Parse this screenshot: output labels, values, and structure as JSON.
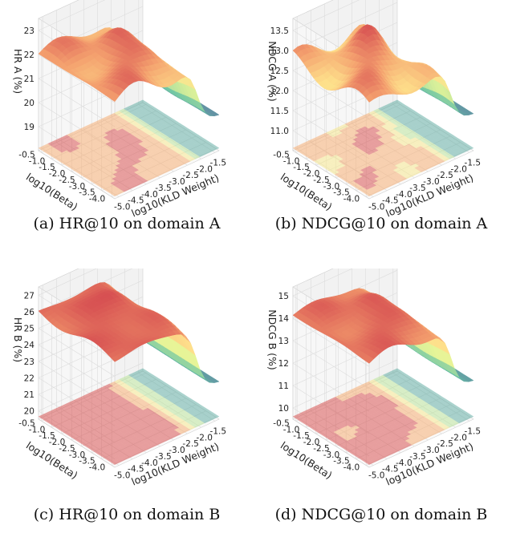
{
  "chart_data": [
    {
      "type": "surface3d",
      "caption": "(a) HR@10 on domain A",
      "zlabel": "HR A (%)",
      "xlabel": "log10(KLD Weight)",
      "ylabel": "log10(Beta)",
      "x_ticks": [
        "-5.0",
        "-4.5",
        "-4.0",
        "-3.5",
        "-3.0",
        "-2.5",
        "-2.0",
        "-1.5"
      ],
      "y_ticks": [
        "-4.0",
        "-3.5",
        "-3.0",
        "-2.5",
        "-2.0",
        "-1.5",
        "-1.0",
        "-0.5"
      ],
      "z_ticks": [
        "19",
        "20",
        "21",
        "22",
        "23"
      ],
      "zlim": [
        18,
        23.5
      ],
      "surface": {
        "base": 21.8,
        "peak": 23.2,
        "drop_to": 18.6
      }
    },
    {
      "type": "surface3d",
      "caption": "(b) NDCG@10 on domain A",
      "zlabel": "NDCG A (%)",
      "xlabel": "log10(KLD Weight)",
      "ylabel": "log10(Beta)",
      "x_ticks": [
        "-5.0",
        "-4.5",
        "-4.0",
        "-3.5",
        "-3.0",
        "-2.5",
        "-2.0",
        "-1.5"
      ],
      "y_ticks": [
        "-4.0",
        "-3.5",
        "-3.0",
        "-2.5",
        "-2.0",
        "-1.5",
        "-1.0",
        "-0.5"
      ],
      "z_ticks": [
        "11.0",
        "11.5",
        "12.0",
        "12.5",
        "13.0",
        "13.5"
      ],
      "zlim": [
        10.5,
        13.8
      ],
      "surface": {
        "base": 12.6,
        "peak": 13.6,
        "drop_to": 10.9
      }
    },
    {
      "type": "surface3d",
      "caption": "(c) HR@10 on domain B",
      "zlabel": "HR B (%)",
      "xlabel": "log10(KLD Weight)",
      "ylabel": "log10(Beta)",
      "x_ticks": [
        "-5.0",
        "-4.5",
        "-4.0",
        "-3.5",
        "-3.0",
        "-2.5",
        "-2.0",
        "-1.5"
      ],
      "y_ticks": [
        "-4.0",
        "-3.5",
        "-3.0",
        "-2.5",
        "-2.0",
        "-1.5",
        "-1.0",
        "-0.5"
      ],
      "z_ticks": [
        "20",
        "21",
        "22",
        "23",
        "24",
        "25",
        "26",
        "27"
      ],
      "zlim": [
        19.5,
        27.5
      ],
      "surface": {
        "base": 25.8,
        "peak": 26.8,
        "drop_to": 20.5
      }
    },
    {
      "type": "surface3d",
      "caption": "(d) NDCG@10 on domain B",
      "zlabel": "NDCG B (%)",
      "xlabel": "log10(KLD Weight)",
      "ylabel": "log10(Beta)",
      "x_ticks": [
        "-5.0",
        "-4.5",
        "-4.0",
        "-3.5",
        "-3.0",
        "-2.5",
        "-2.0",
        "-1.5"
      ],
      "y_ticks": [
        "-4.0",
        "-3.5",
        "-3.0",
        "-2.5",
        "-2.0",
        "-1.5",
        "-1.0",
        "-0.5"
      ],
      "z_ticks": [
        "10",
        "11",
        "12",
        "13",
        "14",
        "15"
      ],
      "zlim": [
        9.5,
        15.4
      ],
      "surface": {
        "base": 14.0,
        "peak": 14.9,
        "drop_to": 10.3
      }
    }
  ]
}
